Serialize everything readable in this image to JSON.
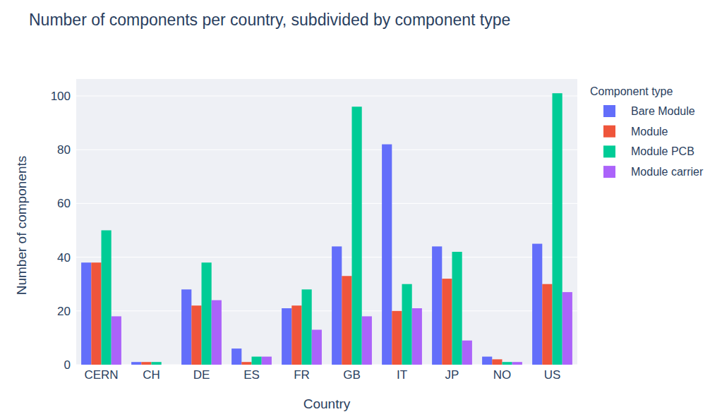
{
  "chart_data": {
    "type": "bar",
    "title": "Number of components per country, subdivided by component type",
    "x_label": "Country",
    "y_label": "Number of components",
    "legend_title": "Component type",
    "categories": [
      "CERN",
      "CH",
      "DE",
      "ES",
      "FR",
      "GB",
      "IT",
      "JP",
      "NO",
      "US"
    ],
    "series": [
      {
        "name": "Bare Module",
        "color": "#636efa",
        "values": [
          38,
          1,
          28,
          6,
          21,
          44,
          82,
          44,
          3,
          45
        ]
      },
      {
        "name": "Module",
        "color": "#ef553b",
        "values": [
          38,
          1,
          22,
          1,
          22,
          33,
          20,
          32,
          2,
          30
        ]
      },
      {
        "name": "Module PCB",
        "color": "#00cc96",
        "values": [
          50,
          1,
          38,
          3,
          28,
          96,
          30,
          42,
          1,
          101
        ]
      },
      {
        "name": "Module carrier",
        "color": "#ab63fa",
        "values": [
          18,
          0,
          24,
          3,
          13,
          18,
          21,
          9,
          1,
          27
        ]
      }
    ],
    "ylim": [
      0,
      106.3
    ],
    "yticks": [
      0,
      20,
      40,
      60,
      80,
      100
    ],
    "grid": true,
    "legend": "right"
  }
}
